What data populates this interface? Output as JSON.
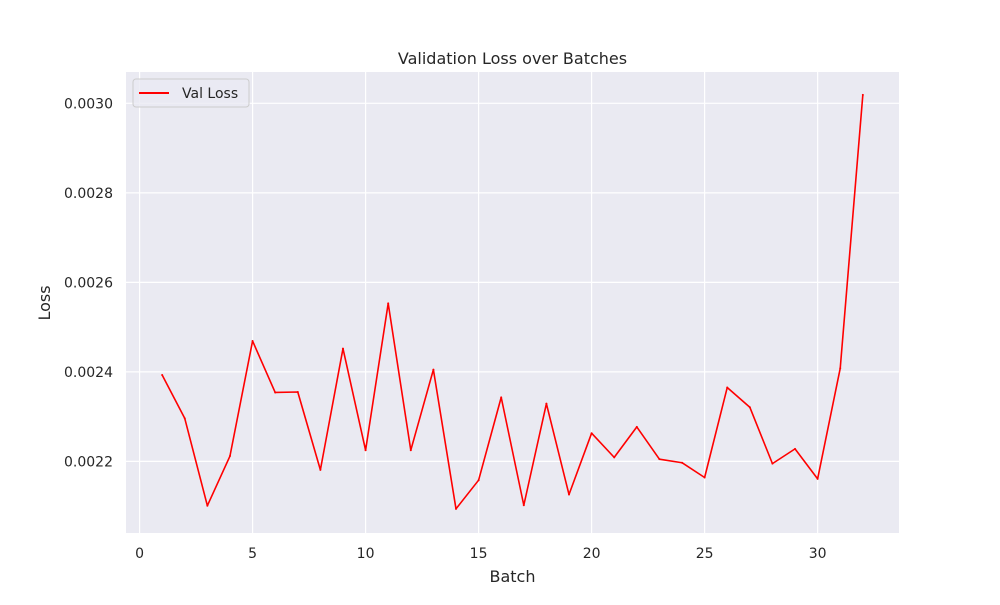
{
  "chart_data": {
    "type": "line",
    "title": "Validation Loss over Batches",
    "xlabel": "Batch",
    "ylabel": "Loss",
    "xlim": [
      -0.6,
      33.6
    ],
    "ylim": [
      0.00204,
      0.00307
    ],
    "xticks": [
      0,
      5,
      10,
      15,
      20,
      25,
      30
    ],
    "yticks": [
      0.0022,
      0.0024,
      0.0026,
      0.0028,
      0.003
    ],
    "ytick_labels": [
      "0.0022",
      "0.0024",
      "0.0026",
      "0.0028",
      "0.0030"
    ],
    "grid": true,
    "legend": {
      "position": "top-left"
    },
    "series": [
      {
        "name": "Val Loss",
        "color": "#ff0000",
        "x": [
          1,
          2,
          3,
          4,
          5,
          6,
          7,
          8,
          9,
          10,
          11,
          12,
          13,
          14,
          15,
          16,
          17,
          18,
          19,
          20,
          21,
          22,
          23,
          24,
          25,
          26,
          27,
          28,
          29,
          30,
          31,
          32
        ],
        "values": [
          0.002393,
          0.002296,
          0.002101,
          0.002212,
          0.002469,
          0.002354,
          0.002355,
          0.002181,
          0.002452,
          0.002225,
          0.002553,
          0.002225,
          0.002405,
          0.002094,
          0.002158,
          0.002343,
          0.002102,
          0.002329,
          0.002126,
          0.002263,
          0.002209,
          0.002277,
          0.002205,
          0.002197,
          0.002164,
          0.002365,
          0.002321,
          0.002195,
          0.002228,
          0.002161,
          0.002408,
          0.003019
        ]
      }
    ]
  }
}
